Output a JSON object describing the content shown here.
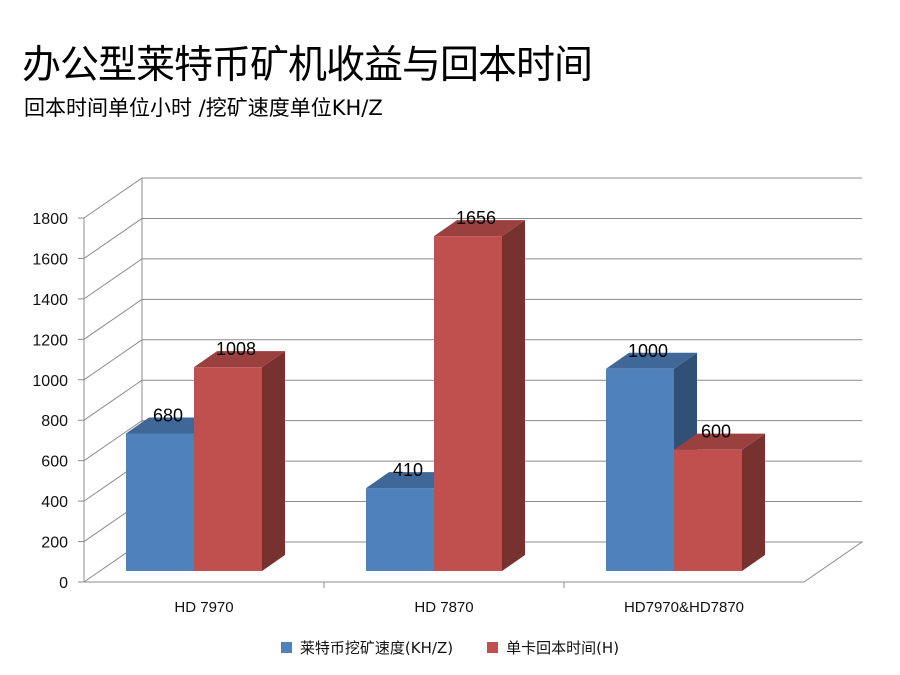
{
  "title": "办公型莱特币矿机收益与回本时间",
  "subtitle": "回本时间单位小时 /挖矿速度单位KH/Z",
  "colors": {
    "series1": "#4F81BD",
    "series2": "#C0504D",
    "grid": "#8c8c8c"
  },
  "chart_data": {
    "type": "bar",
    "categories": [
      "HD 7970",
      "HD 7870",
      "HD7970&HD7870"
    ],
    "series": [
      {
        "name": "莱特币挖矿速度(KH/Z)",
        "values": [
          680,
          410,
          1000
        ],
        "labels": [
          "680",
          "410",
          "1000"
        ]
      },
      {
        "name": "单卡回本时间(H)",
        "values": [
          1008,
          1656,
          600
        ],
        "labels": [
          "1008",
          "1656",
          "600"
        ]
      }
    ],
    "ylim": [
      0,
      1800
    ],
    "yticks": [
      "0",
      "200",
      "400",
      "600",
      "800",
      "1000",
      "1200",
      "1400",
      "1600",
      "1800"
    ],
    "grid": true,
    "legend": "bottom",
    "style": "3d-clustered-column"
  }
}
